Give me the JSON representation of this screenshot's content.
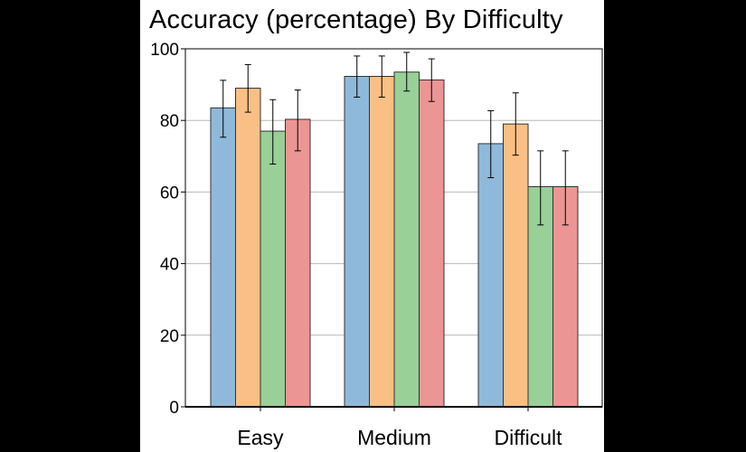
{
  "chart_data": {
    "type": "bar",
    "title": "Accuracy (percentage) By Difficulty",
    "xlabel": "",
    "ylabel": "",
    "categories": [
      "Easy",
      "Medium",
      "Difficult"
    ],
    "ylim": [
      0,
      100
    ],
    "yticks": [
      0,
      20,
      40,
      60,
      80,
      100
    ],
    "grid": true,
    "legend": "none",
    "series": [
      {
        "color": "#8FB9DA",
        "values": [
          83.5,
          92.3,
          73.5
        ],
        "err_low": [
          75.3,
          86.5,
          64.0
        ],
        "err_high": [
          91.2,
          98.0,
          82.7
        ]
      },
      {
        "color": "#F9BF85",
        "values": [
          89.0,
          92.3,
          79.0
        ],
        "err_low": [
          82.3,
          86.5,
          70.3
        ],
        "err_high": [
          95.6,
          98.0,
          87.7
        ]
      },
      {
        "color": "#98D097",
        "values": [
          77.0,
          93.5,
          61.5
        ],
        "err_low": [
          67.8,
          88.2,
          50.8
        ],
        "err_high": [
          85.8,
          99.0,
          71.5
        ]
      },
      {
        "color": "#EC9595",
        "values": [
          80.3,
          91.3,
          61.5
        ],
        "err_low": [
          71.5,
          85.3,
          50.8
        ],
        "err_high": [
          88.5,
          97.2,
          71.5
        ]
      }
    ]
  }
}
